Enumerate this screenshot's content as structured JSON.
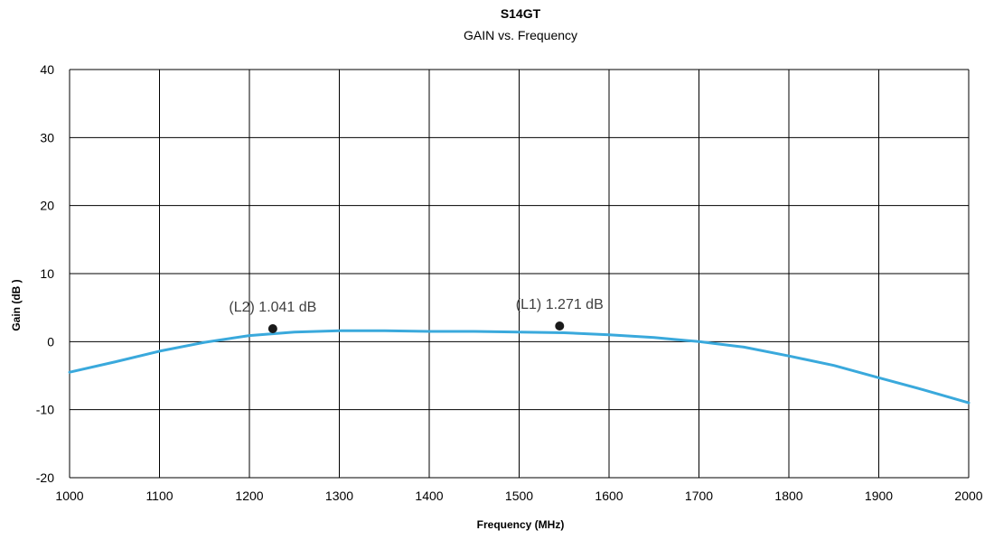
{
  "chart_data": {
    "type": "line",
    "title": "S14GT",
    "subtitle": "GAIN vs. Frequency",
    "xlabel": "Frequency (MHz)",
    "ylabel": "Gain (dB )",
    "xlim": [
      1000,
      2000
    ],
    "ylim": [
      -20,
      40
    ],
    "x_ticks": [
      1000,
      1100,
      1200,
      1300,
      1400,
      1500,
      1600,
      1700,
      1800,
      1900,
      2000
    ],
    "y_ticks": [
      -20,
      -10,
      0,
      10,
      20,
      30,
      40
    ],
    "grid": true,
    "legend": "none",
    "colors": {
      "series": "#3aa9dc",
      "marker": "#1a1a1a",
      "grid": "#000000"
    },
    "series": [
      {
        "x": [
          1000,
          1050,
          1100,
          1150,
          1200,
          1250,
          1300,
          1350,
          1400,
          1450,
          1500,
          1550,
          1600,
          1650,
          1700,
          1750,
          1800,
          1850,
          1900,
          1950,
          2000
        ],
        "values": [
          -4.5,
          -3.0,
          -1.4,
          -0.1,
          0.9,
          1.4,
          1.6,
          1.6,
          1.5,
          1.5,
          1.4,
          1.3,
          1.0,
          0.6,
          0.0,
          -0.8,
          -2.1,
          -3.5,
          -5.3,
          -7.1,
          -9.0
        ]
      }
    ],
    "markers": [
      {
        "label": "(L2) 1.041 dB",
        "x": 1226,
        "y": 1.9
      },
      {
        "label": "(L1) 1.271 dB",
        "x": 1545,
        "y": 2.3
      }
    ]
  }
}
